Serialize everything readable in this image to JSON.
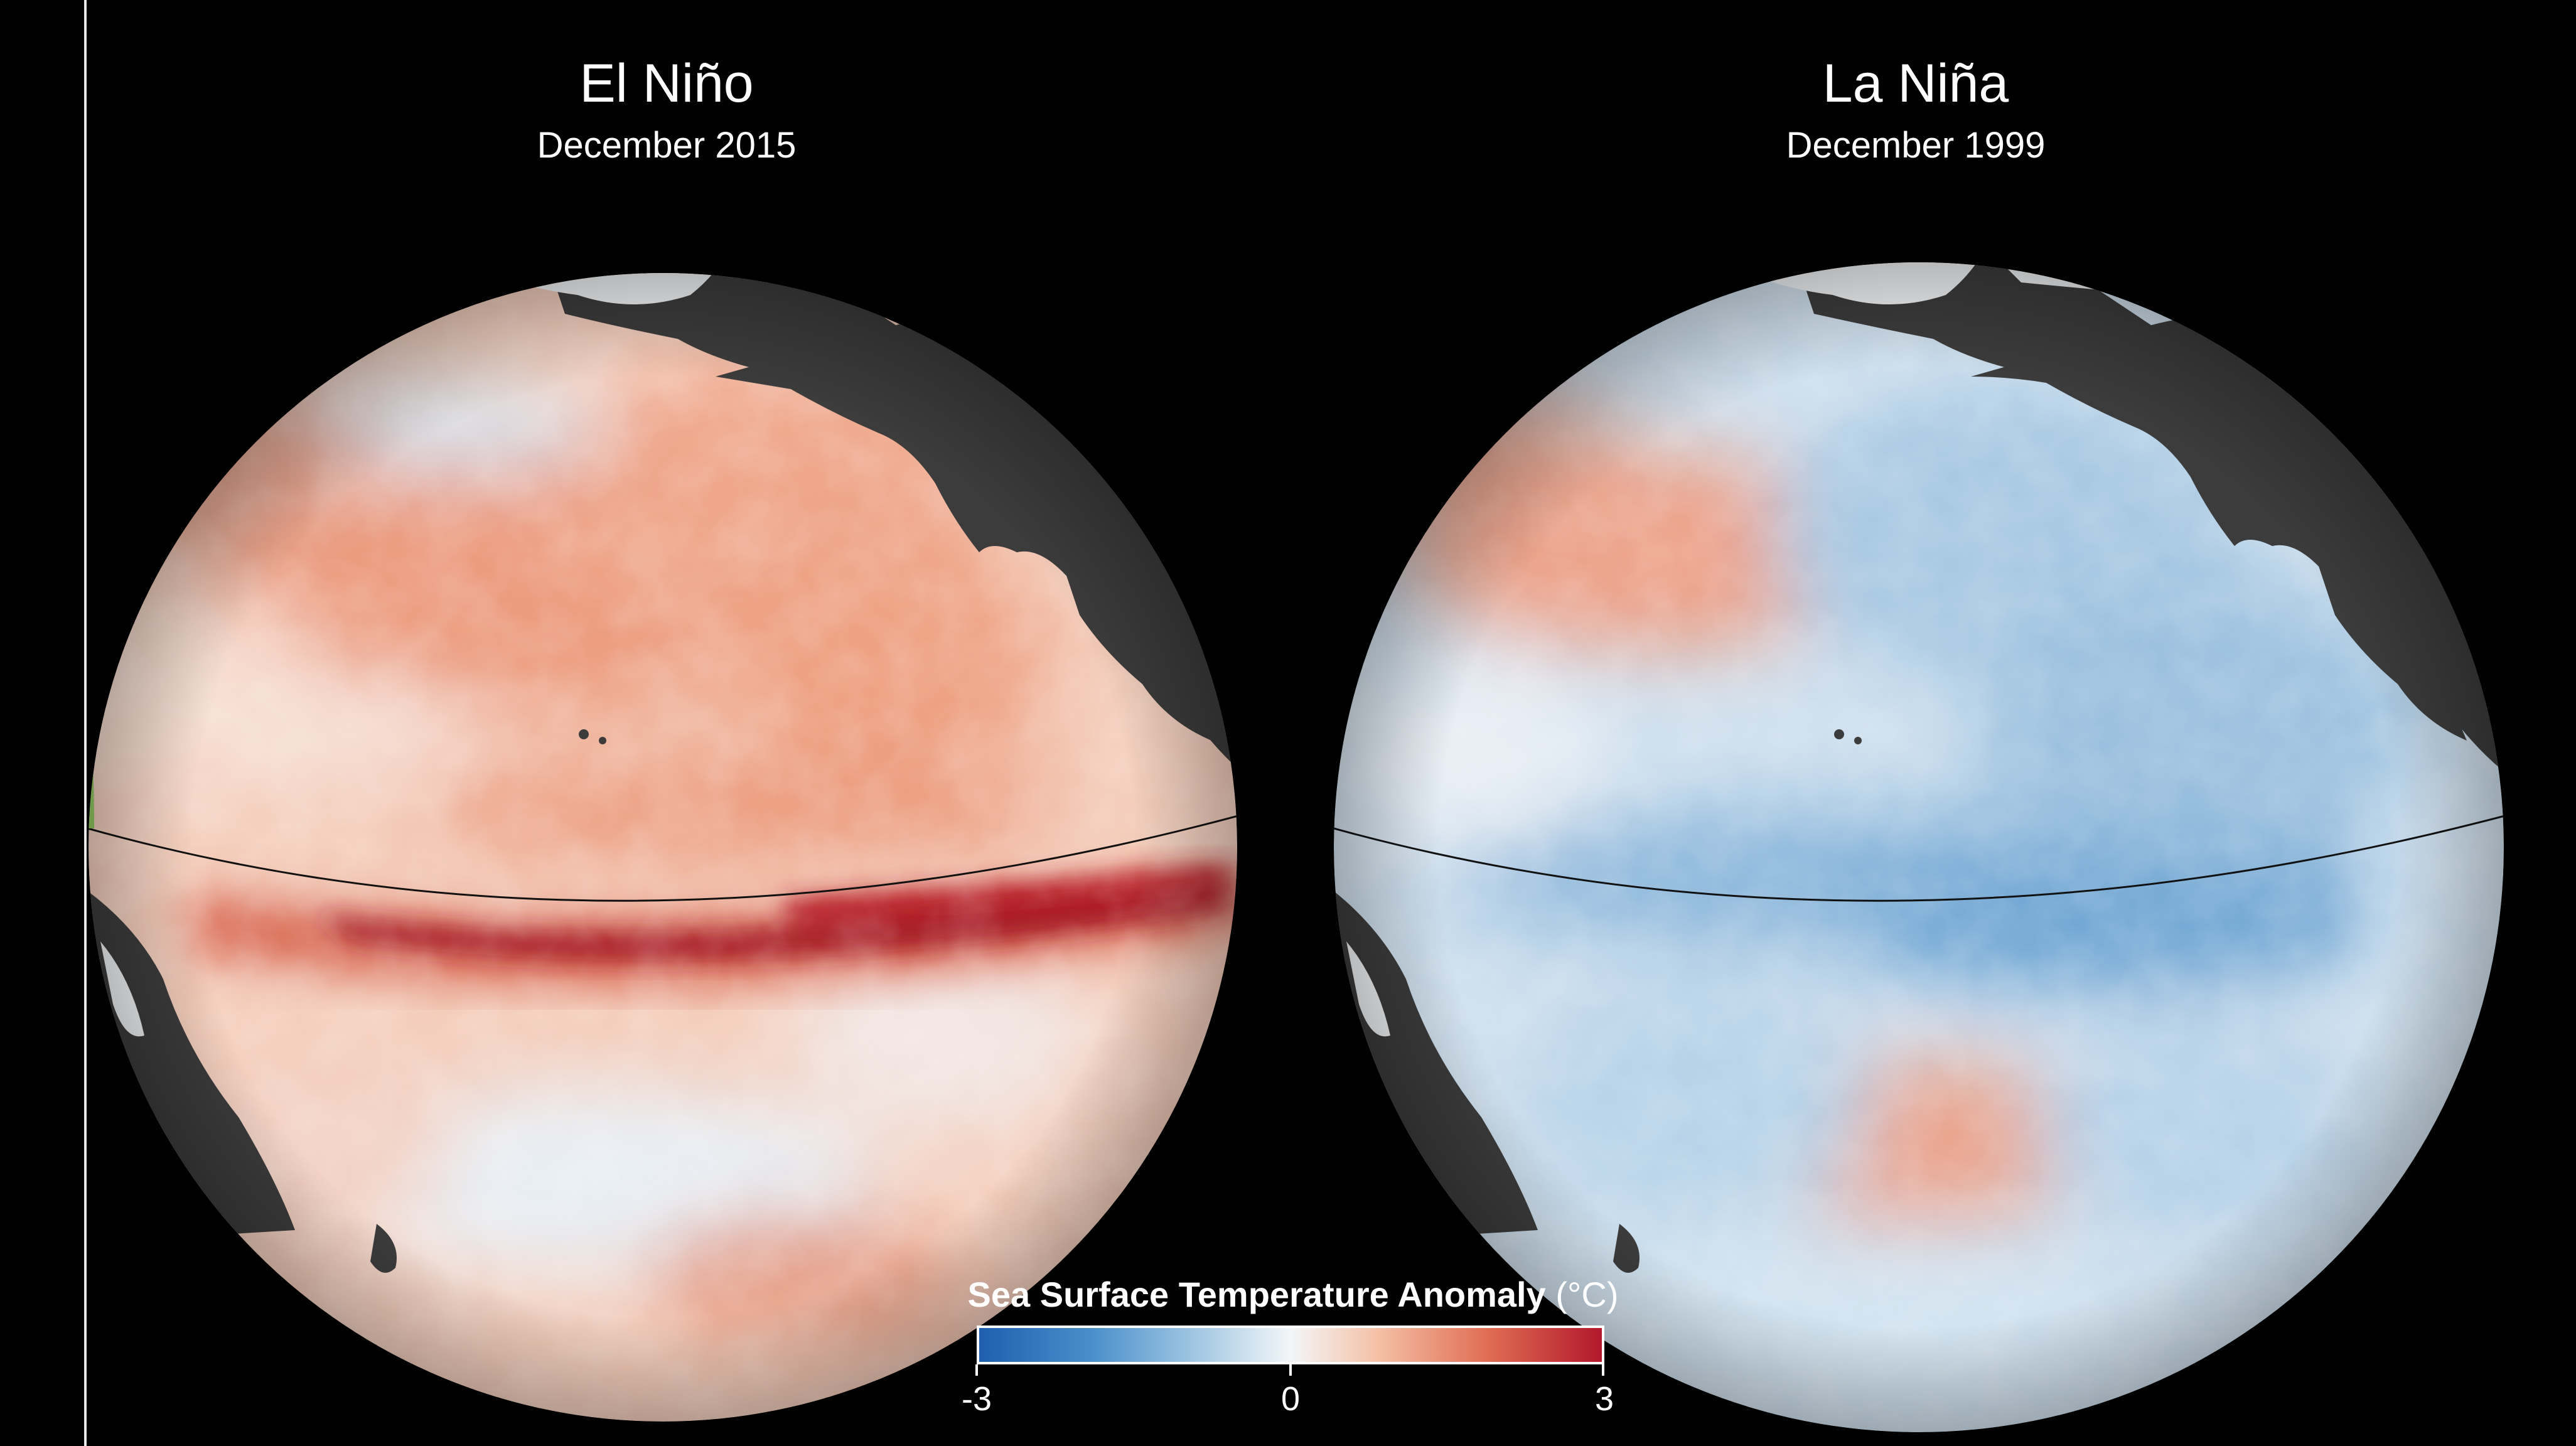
{
  "panels": [
    {
      "title": "El Niño",
      "subtitle": "December 2015",
      "phase": "warm"
    },
    {
      "title": "La Niña",
      "subtitle": "December 1999",
      "phase": "cool"
    }
  ],
  "legend": {
    "title_main": "Sea Surface Temperature Anomaly",
    "title_unit": "(°C)",
    "min_label": "-3",
    "mid_label": "0",
    "max_label": "3",
    "range": [
      -3,
      3
    ],
    "colors": [
      "#1f5fae",
      "#f3f6f8",
      "#b2182b"
    ]
  },
  "colors": {
    "background": "#000000",
    "land": "#3c3c3c",
    "ice": "#f4f6f8",
    "equator_line": "#111111"
  }
}
